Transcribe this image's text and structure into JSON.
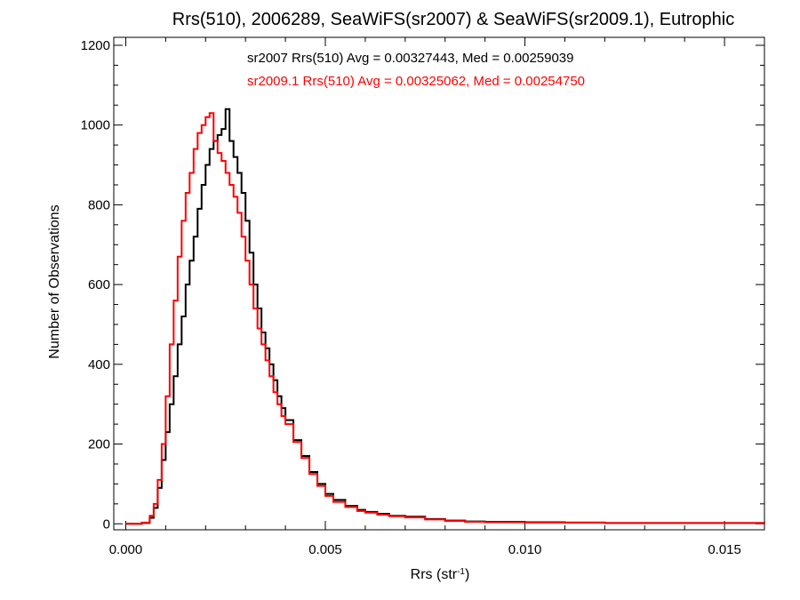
{
  "chart_data": {
    "type": "line",
    "title": "Rrs(510), 2006289, SeaWiFS(sr2007) & SeaWiFS(sr2009.1), Eutrophic",
    "xlabel": {
      "base": "Rrs (str",
      "sup": "-1",
      "tail": ")"
    },
    "ylabel": "Number of Observations",
    "xlim": [
      -0.0003,
      0.016
    ],
    "ylim": [
      -15,
      1220
    ],
    "xticks": [
      0.0,
      0.005,
      0.01,
      0.015
    ],
    "xtick_labels": [
      "0.000",
      "0.005",
      "0.010",
      "0.015"
    ],
    "yticks": [
      0,
      200,
      400,
      600,
      800,
      1000,
      1200
    ],
    "ytick_labels": [
      "0",
      "200",
      "400",
      "600",
      "800",
      "1000",
      "1200"
    ],
    "grid": false,
    "legend": "top-center",
    "annotations": [
      {
        "text": "sr2007 Rrs(510) Avg = 0.00327443, Med = 0.00259039",
        "color": "#000000"
      },
      {
        "text": "sr2009.1 Rrs(510) Avg = 0.00325062, Med = 0.00254750",
        "color": "#ff0000"
      }
    ],
    "series": [
      {
        "color": "#000000",
        "x": [
          0.0,
          0.0004,
          0.0006,
          0.0007,
          0.0008,
          0.0009,
          0.001,
          0.0011,
          0.0012,
          0.0013,
          0.0014,
          0.0015,
          0.0016,
          0.0017,
          0.0018,
          0.0019,
          0.002,
          0.0021,
          0.0022,
          0.0023,
          0.0024,
          0.0025,
          0.0026,
          0.0027,
          0.0028,
          0.0029,
          0.003,
          0.0031,
          0.0032,
          0.0033,
          0.0034,
          0.0035,
          0.0036,
          0.0037,
          0.0038,
          0.0039,
          0.004,
          0.0042,
          0.0044,
          0.0046,
          0.0048,
          0.005,
          0.0052,
          0.0055,
          0.0058,
          0.006,
          0.0063,
          0.0066,
          0.007,
          0.0075,
          0.008,
          0.0085,
          0.009,
          0.01,
          0.011,
          0.012,
          0.013,
          0.014,
          0.015,
          0.016
        ],
        "y": [
          0,
          2,
          15,
          40,
          90,
          160,
          230,
          300,
          370,
          450,
          520,
          600,
          660,
          720,
          790,
          850,
          900,
          940,
          960,
          975,
          990,
          1040,
          960,
          920,
          880,
          830,
          760,
          680,
          600,
          540,
          480,
          440,
          400,
          360,
          320,
          290,
          260,
          210,
          170,
          130,
          100,
          75,
          60,
          45,
          35,
          30,
          25,
          20,
          18,
          12,
          8,
          6,
          5,
          4,
          3,
          2,
          2,
          2,
          2,
          1
        ]
      },
      {
        "color": "#ff0000",
        "x": [
          0.0,
          0.0004,
          0.0006,
          0.0007,
          0.0008,
          0.0009,
          0.001,
          0.0011,
          0.0012,
          0.0013,
          0.0014,
          0.0015,
          0.0016,
          0.0017,
          0.0018,
          0.0019,
          0.002,
          0.0021,
          0.0022,
          0.0023,
          0.0024,
          0.0025,
          0.0026,
          0.0027,
          0.0028,
          0.0029,
          0.003,
          0.0031,
          0.0032,
          0.0033,
          0.0034,
          0.0035,
          0.0036,
          0.0037,
          0.0038,
          0.0039,
          0.004,
          0.0042,
          0.0044,
          0.0046,
          0.0048,
          0.005,
          0.0052,
          0.0055,
          0.0058,
          0.006,
          0.0063,
          0.0066,
          0.007,
          0.0075,
          0.008,
          0.0085,
          0.009,
          0.01,
          0.011,
          0.012,
          0.013,
          0.014,
          0.015,
          0.016
        ],
        "y": [
          0,
          3,
          20,
          50,
          110,
          200,
          320,
          450,
          560,
          670,
          760,
          830,
          880,
          940,
          980,
          1000,
          1020,
          1030,
          960,
          930,
          910,
          880,
          850,
          820,
          780,
          720,
          660,
          600,
          540,
          490,
          450,
          410,
          370,
          330,
          300,
          270,
          250,
          205,
          165,
          125,
          95,
          70,
          55,
          42,
          32,
          28,
          23,
          19,
          16,
          11,
          7,
          5,
          4,
          3,
          3,
          2,
          2,
          2,
          2,
          1
        ]
      }
    ]
  }
}
